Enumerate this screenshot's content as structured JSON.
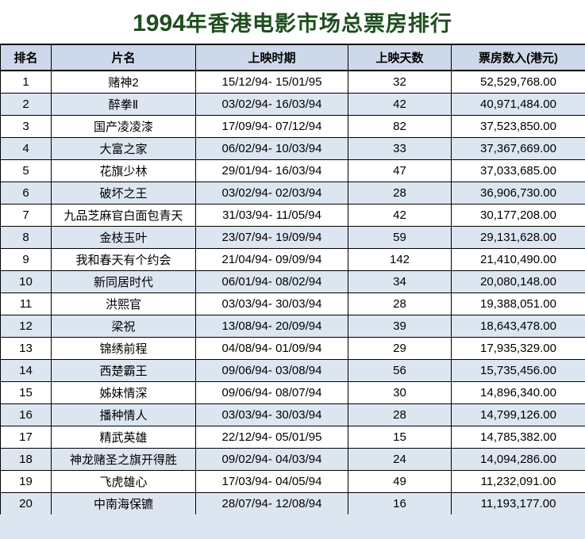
{
  "title_parts": {
    "year": "1994",
    "rest": "年香港电影市场总票房排行"
  },
  "colors": {
    "title_green": "#1F4E1F",
    "header_bg": "#CDD9EA",
    "stripe_bg": "#DCE6F1",
    "border": "#000000",
    "top_area_bg": "#FFFFFF"
  },
  "chart_data": {
    "type": "table",
    "title": "1994年香港电影市场总票房排行",
    "columns": [
      "排名",
      "片名",
      "上映时期",
      "上映天数",
      "票房数入(港元)"
    ],
    "rows": [
      [
        "1",
        "赌神2",
        "15/12/94- 15/01/95",
        "32",
        "52,529,768.00"
      ],
      [
        "2",
        "醉拳Ⅱ",
        "03/02/94- 16/03/94",
        "42",
        "40,971,484.00"
      ],
      [
        "3",
        "国产凌凌漆",
        "17/09/94- 07/12/94",
        "82",
        "37,523,850.00"
      ],
      [
        "4",
        "大富之家",
        "06/02/94- 10/03/94",
        "33",
        "37,367,669.00"
      ],
      [
        "5",
        "花旗少林",
        "29/01/94- 16/03/94",
        "47",
        "37,033,685.00"
      ],
      [
        "6",
        "破坏之王",
        "03/02/94- 02/03/94",
        "28",
        "36,906,730.00"
      ],
      [
        "7",
        "九品芝麻官白面包青天",
        "31/03/94- 11/05/94",
        "42",
        "30,177,208.00"
      ],
      [
        "8",
        "金枝玉叶",
        "23/07/94- 19/09/94",
        "59",
        "29,131,628.00"
      ],
      [
        "9",
        "我和春天有个约会",
        "21/04/94- 09/09/94",
        "142",
        "21,410,490.00"
      ],
      [
        "10",
        "新同居时代",
        "06/01/94- 08/02/94",
        "34",
        "20,080,148.00"
      ],
      [
        "11",
        "洪熙官",
        "03/03/94- 30/03/94",
        "28",
        "19,388,051.00"
      ],
      [
        "12",
        "梁祝",
        "13/08/94- 20/09/94",
        "39",
        "18,643,478.00"
      ],
      [
        "13",
        "锦绣前程",
        "04/08/94- 01/09/94",
        "29",
        "17,935,329.00"
      ],
      [
        "14",
        "西楚霸王",
        "09/06/94- 03/08/94",
        "56",
        "15,735,456.00"
      ],
      [
        "15",
        "姊妹情深",
        "09/06/94- 08/07/94",
        "30",
        "14,896,340.00"
      ],
      [
        "16",
        "播种情人",
        "03/03/94- 30/03/94",
        "28",
        "14,799,126.00"
      ],
      [
        "17",
        "精武英雄",
        "22/12/94- 05/01/95",
        "15",
        "14,785,382.00"
      ],
      [
        "18",
        "神龙赌圣之旗开得胜",
        "09/02/94- 04/03/94",
        "24",
        "14,094,286.00"
      ],
      [
        "19",
        "飞虎雄心",
        "17/03/94- 04/05/94",
        "49",
        "11,232,091.00"
      ],
      [
        "20",
        "中南海保镳",
        "28/07/94- 12/08/94",
        "16",
        "11,193,177.00"
      ]
    ]
  }
}
